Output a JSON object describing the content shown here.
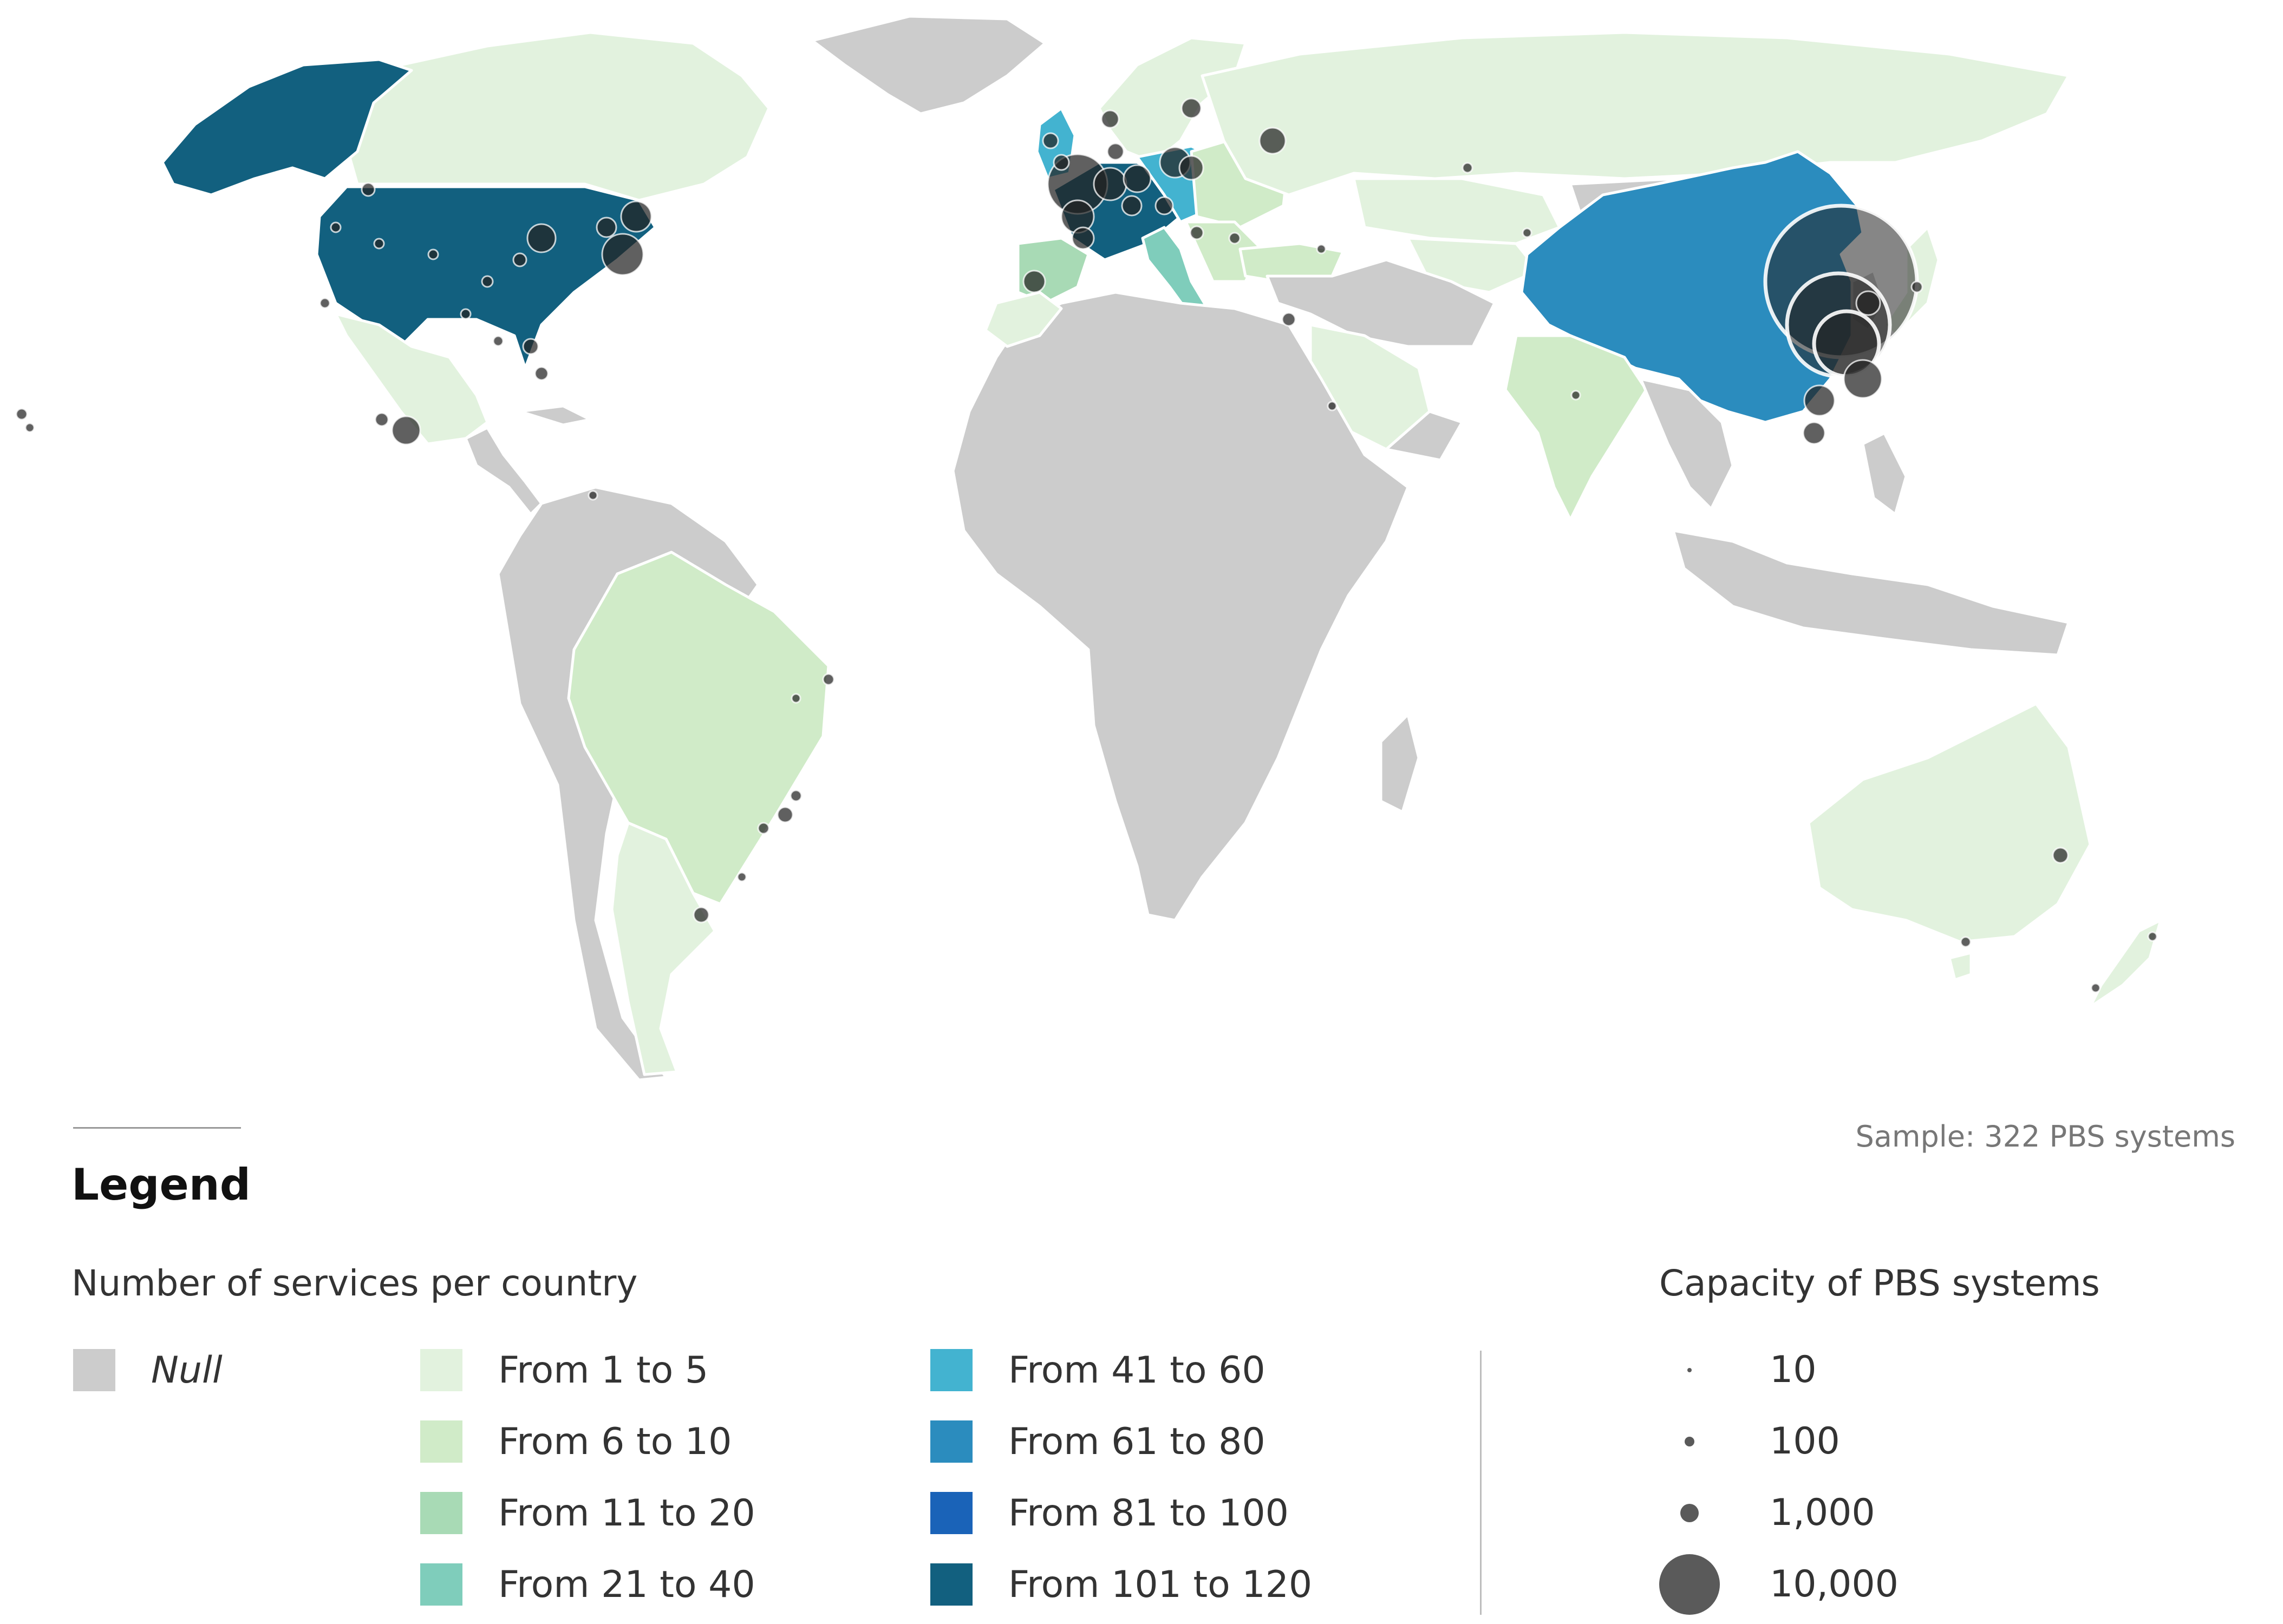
{
  "sample_note": "Sample: 322 PBS systems",
  "legend": {
    "title": "Legend",
    "services_title": "Number of services per country",
    "services_classes": [
      {
        "label": "Null",
        "color": "#cccccc"
      },
      {
        "label": "From 1 to 5",
        "color": "#e2f2de"
      },
      {
        "label": "From 6 to 10",
        "color": "#d0ebc8"
      },
      {
        "label": "From 11 to 20",
        "color": "#a8dab5"
      },
      {
        "label": "From 21 to 40",
        "color": "#7fcdbb"
      },
      {
        "label": "From 41 to 60",
        "color": "#43b3d0"
      },
      {
        "label": "From 61 to 80",
        "color": "#2b8cbe"
      },
      {
        "label": "From 81 to 100",
        "color": "#1a63b8"
      },
      {
        "label": "From 101 to 120",
        "color": "#12607f"
      }
    ],
    "capacity_title": "Capacity of PBS systems",
    "capacity_classes": [
      {
        "label": "10",
        "value": 10
      },
      {
        "label": "100",
        "value": 100
      },
      {
        "label": "1,000",
        "value": 1000
      },
      {
        "label": "10,000",
        "value": 10000
      }
    ]
  },
  "colors": {
    "null": "#cccccc",
    "c1_5": "#e2f2de",
    "c6_10": "#d0ebc8",
    "c11_20": "#a8dab5",
    "c21_40": "#7fcdbb",
    "c41_60": "#43b3d0",
    "c61_80": "#2b8cbe",
    "c101_120": "#12607f",
    "bubble": "#222222"
  }
}
